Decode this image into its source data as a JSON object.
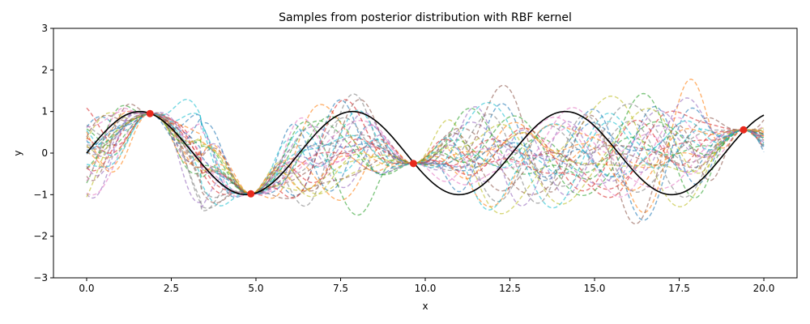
{
  "chart_data": {
    "type": "line",
    "title": "Samples from posterior distribution with RBF kernel",
    "xlabel": "x",
    "ylabel": "y",
    "xlim": [
      -0.98,
      20.98
    ],
    "ylim": [
      -3,
      3
    ],
    "xticks": [
      "0.0",
      "2.5",
      "5.0",
      "7.5",
      "10.0",
      "12.5",
      "15.0",
      "17.5",
      "20.0"
    ],
    "yticks": [
      "−3",
      "−2",
      "−1",
      "0",
      "1",
      "2",
      "3"
    ],
    "grid": false,
    "legend": "none",
    "true_function": {
      "description": "sin(x)",
      "x_range": [
        0,
        20
      ],
      "color": "#000000"
    },
    "observations": {
      "x": [
        1.87,
        4.85,
        9.65,
        19.4
      ],
      "y": [
        0.95,
        -0.98,
        -0.25,
        0.56
      ],
      "color": "#e8291c"
    },
    "posterior_samples": {
      "count": 30,
      "style": "dashed",
      "colors": [
        "#1f77b4",
        "#ff7f0e",
        "#2ca02c",
        "#d62728",
        "#9467bd",
        "#8c564b",
        "#e377c2",
        "#7f7f7f",
        "#bcbd22",
        "#17becf"
      ]
    }
  }
}
